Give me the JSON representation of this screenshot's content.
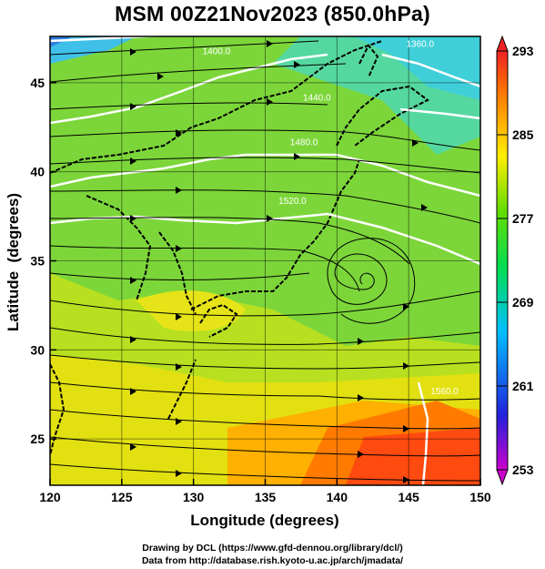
{
  "title": "MSM 00Z21Nov2023 (850.0hPa)",
  "axes": {
    "xlabel": "Longitude (degrees)",
    "ylabel": "Latitude  (degrees)",
    "xlim": [
      120,
      150
    ],
    "ylim": [
      22.4,
      47.6
    ],
    "xticks": [
      "120",
      "125",
      "130",
      "135",
      "140",
      "145",
      "150"
    ],
    "yticks": [
      "25",
      "30",
      "35",
      "40",
      "45"
    ]
  },
  "colorbar": {
    "ticks": [
      "293",
      "285",
      "277",
      "269",
      "261",
      "253"
    ],
    "range": [
      253,
      293
    ]
  },
  "contours": [
    {
      "label": "1360.0",
      "lon": 145.8,
      "lat": 47.0
    },
    {
      "label": "1400.0",
      "lon": 131.6,
      "lat": 46.6
    },
    {
      "label": "1440.0",
      "lon": 138.6,
      "lat": 44.0
    },
    {
      "label": "1480.0",
      "lon": 137.7,
      "lat": 41.5
    },
    {
      "label": "1520.0",
      "lon": 136.9,
      "lat": 38.2
    },
    {
      "label": "1560.0",
      "lon": 147.5,
      "lat": 27.5
    }
  ],
  "credits": {
    "line1": "Drawing by DCL (https://www.gfd-dennou.org/library/dcl/)",
    "line2": "Data from http://database.rish.kyoto-u.ac.jp/arch/jmadata/"
  }
}
